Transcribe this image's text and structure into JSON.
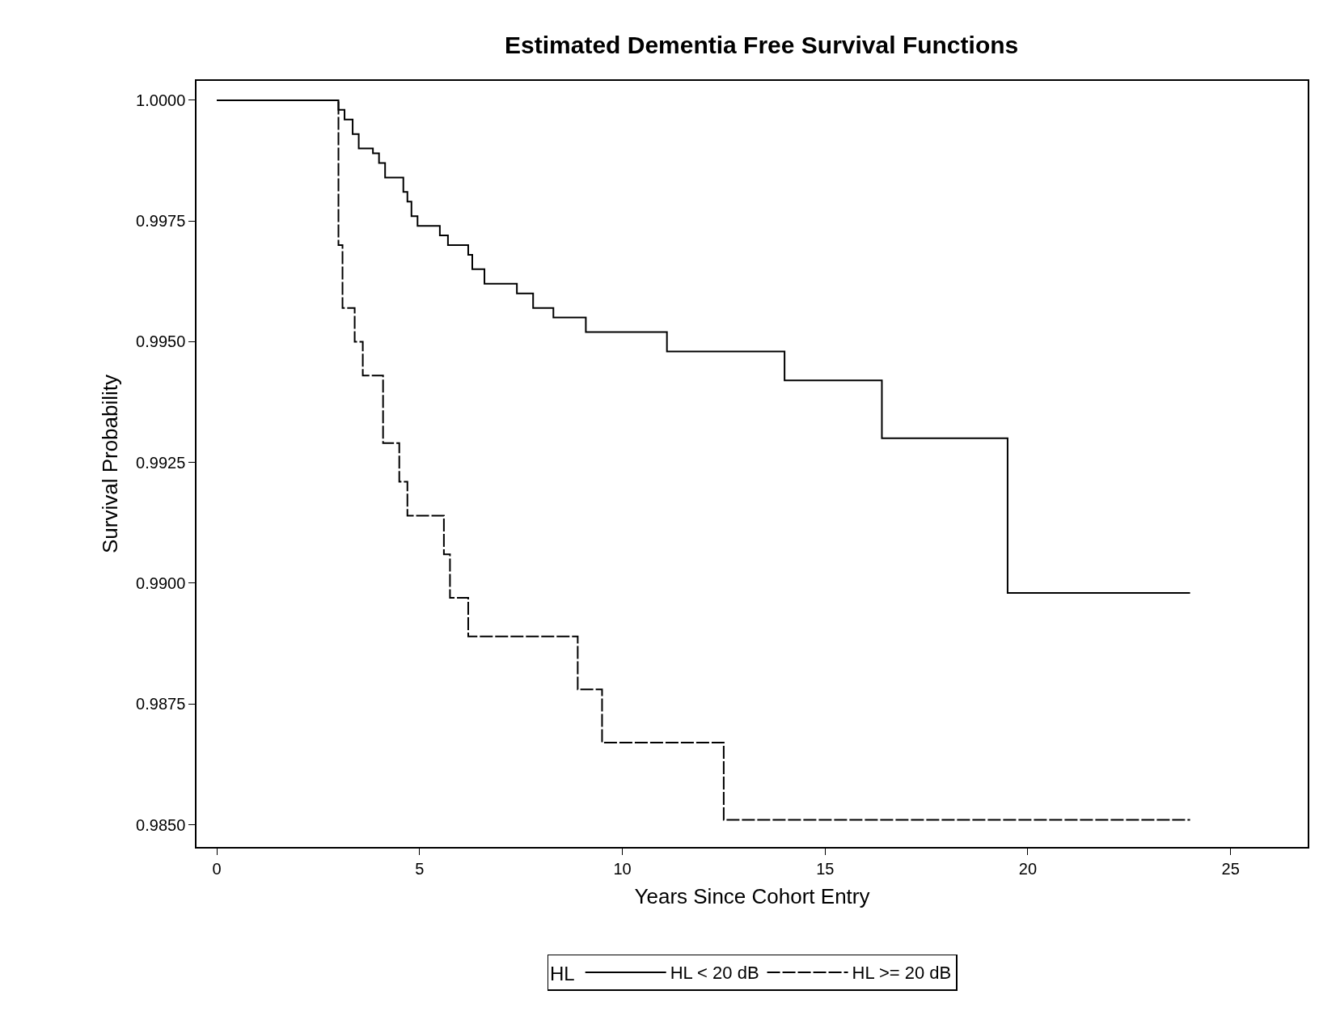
{
  "chart_data": {
    "type": "step",
    "title": "Estimated Dementia Free Survival Functions",
    "xlabel": "Years Since Cohort Entry",
    "ylabel": "Survival Probability",
    "legend_title": "HL",
    "legend": "bottom",
    "marker": "none",
    "xlim": [
      -0.5,
      26.9
    ],
    "xticks": [
      0,
      5,
      10,
      15,
      20,
      25
    ],
    "ylim": [
      0.98454,
      1.0004
    ],
    "yticks": [
      {
        "value": 0.985,
        "label": "0.9850"
      },
      {
        "value": 0.9875,
        "label": "0.9875"
      },
      {
        "value": 0.99,
        "label": "0.9900"
      },
      {
        "value": 0.9925,
        "label": "0.9925"
      },
      {
        "value": 0.995,
        "label": "0.9950"
      },
      {
        "value": 0.9975,
        "label": "0.9975"
      },
      {
        "value": 1.0,
        "label": "1.0000"
      }
    ],
    "series": [
      {
        "name": "HL < 20 dB",
        "color": "#000000",
        "line_style": "solid",
        "x": [
          0,
          3.0,
          3.15,
          3.35,
          3.5,
          3.85,
          4.0,
          4.15,
          4.6,
          4.7,
          4.8,
          4.95,
          5.5,
          5.7,
          6.2,
          6.3,
          6.6,
          7.4,
          7.8,
          8.3,
          9.1,
          11.1,
          14.0,
          16.4,
          19.5,
          24.0
        ],
        "values": [
          1.0,
          0.9998,
          0.9996,
          0.9993,
          0.999,
          0.9989,
          0.9987,
          0.9984,
          0.9981,
          0.9979,
          0.9976,
          0.9974,
          0.9972,
          0.997,
          0.9968,
          0.9965,
          0.9962,
          0.996,
          0.9957,
          0.9955,
          0.9952,
          0.9948,
          0.9942,
          0.993,
          0.9898,
          0.9898
        ]
      },
      {
        "name": "HL >= 20 dB",
        "color": "#000000",
        "line_style": "dashed",
        "x": [
          0,
          3.0,
          3.1,
          3.4,
          3.6,
          4.1,
          4.5,
          4.7,
          5.6,
          5.75,
          6.2,
          8.9,
          9.5,
          12.5,
          24.0
        ],
        "values": [
          1.0,
          0.997,
          0.9957,
          0.995,
          0.9943,
          0.9929,
          0.9921,
          0.9914,
          0.9906,
          0.9897,
          0.9889,
          0.9878,
          0.9867,
          0.9851,
          0.9851
        ]
      }
    ]
  }
}
